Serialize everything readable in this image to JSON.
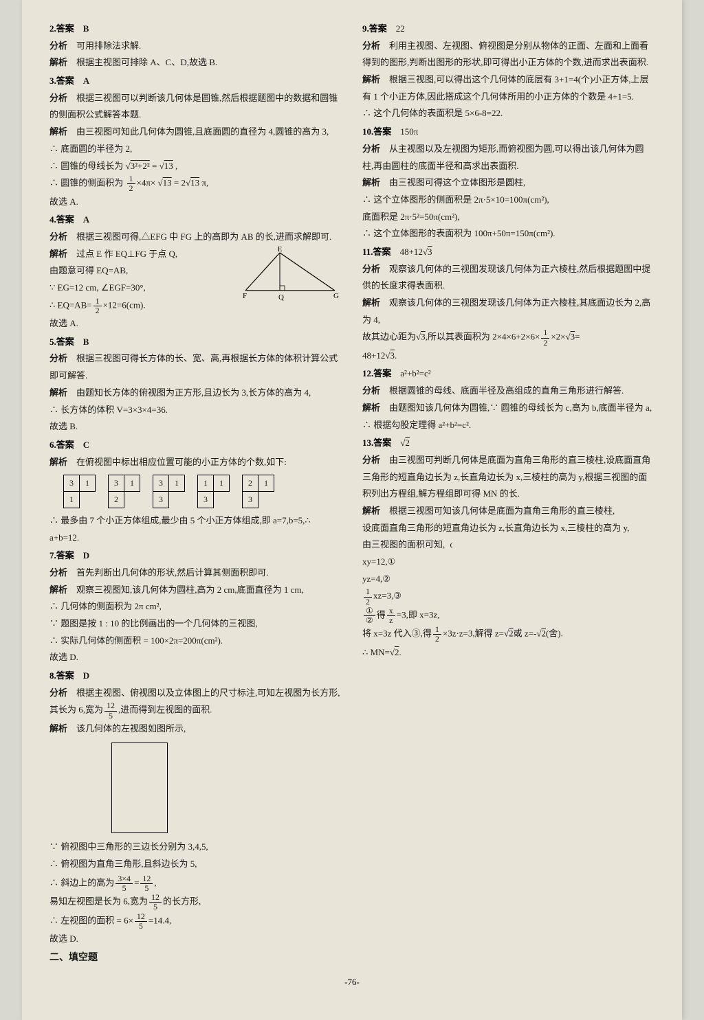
{
  "page_number": "-76-",
  "section2_title": "二、填空题",
  "q2": {
    "num": "2.答案",
    "ans": "B",
    "fx_label": "分析",
    "fx": "可用排除法求解.",
    "jx_label": "解析",
    "jx": "根据主视图可排除 A、C、D,故选 B."
  },
  "q3": {
    "num": "3.答案",
    "ans": "A",
    "fx_label": "分析",
    "fx": "根据三视图可以判断该几何体是圆锥,然后根据题图中的数据和圆锥的侧面积公式解答本题.",
    "jx_label": "解析",
    "jx1": "由三视图可知此几何体为圆锥,且底面圆的直径为 4,圆锥的高为 3,",
    "l1": "∴ 底面圆的半径为 2,",
    "l2_a": "∴ 圆锥的母线长为 ",
    "l2_b": "3²+2²",
    "l2_c": " = ",
    "l2_d": "13",
    "l2_e": " ,",
    "l3_a": "∴ 圆锥的侧面积为 ",
    "l3_n": "1",
    "l3_d": "2",
    "l3_b": "×4π× ",
    "l3_c": "13",
    "l3_dd": " = 2",
    "l3_e": "13",
    "l3_f": " π,",
    "l4": "故选 A."
  },
  "q4": {
    "num": "4.答案",
    "ans": "A",
    "fx_label": "分析",
    "fx": "根据三视图可得,△EFG 中 FG 上的高即为 AB 的长,进而求解即可.",
    "jx_label": "解析",
    "jx1": "过点 E 作 EQ⊥FG 于点 Q,",
    "l1": "由题意可得 EQ=AB,",
    "l2": "∵ EG=12 cm, ∠EGF=30°,",
    "l3_a": "∴ EQ=AB=",
    "l3_n": "1",
    "l3_d": "2",
    "l3_b": "×12=6(cm).",
    "l4": "故选 A.",
    "fig_E": "E",
    "fig_F": "F",
    "fig_Q": "Q",
    "fig_G": "G"
  },
  "q5": {
    "num": "5.答案",
    "ans": "B",
    "fx_label": "分析",
    "fx": "根据三视图可得长方体的长、宽、高,再根据长方体的体积计算公式即可解答.",
    "jx_label": "解析",
    "jx": "由题知长方体的俯视图为正方形,且边长为 3,长方体的高为 4,",
    "l1": "∴ 长方体的体积 V=3×3×4=36.",
    "l2": "故选 B."
  },
  "q6": {
    "num": "6.答案",
    "ans": "C",
    "jx_label": "解析",
    "jx": "在俯视图中标出相应位置可能的小正方体的个数,如下:",
    "l1": "∴ 最多由 7 个小正方体组成,最少由 5 个小正方体组成,即 a=7,b=5,∴ a+b=12.",
    "tables": [
      [
        [
          "3",
          "1"
        ],
        [
          "1",
          ""
        ]
      ],
      [
        [
          "3",
          "1"
        ],
        [
          "2",
          ""
        ]
      ],
      [
        [
          "3",
          "1"
        ],
        [
          "3",
          ""
        ]
      ],
      [
        [
          "1",
          "1"
        ],
        [
          "3",
          ""
        ]
      ],
      [
        [
          "2",
          "1"
        ],
        [
          "3",
          ""
        ]
      ]
    ]
  },
  "q7": {
    "num": "7.答案",
    "ans": "D",
    "fx_label": "分析",
    "fx": "首先判断出几何体的形状,然后计算其侧面积即可.",
    "jx_label": "解析",
    "jx": "观察三视图知,该几何体为圆柱,高为 2 cm,底面直径为 1 cm,",
    "l1": "∴ 几何体的侧面积为 2π cm²,",
    "l2": "∵ 题图是按 1 : 10 的比例画出的一个几何体的三视图,",
    "l3": "∴ 实际几何体的侧面积 = 100×2π=200π(cm²).",
    "l4": "故选 D."
  },
  "q8": {
    "num": "8.答案",
    "ans": "D",
    "fx_label": "分析",
    "fx_a": "根据主视图、俯视图以及立体图上的尺寸标注,可知左视图为长方形,其长为 6,宽为",
    "fx_n": "12",
    "fx_d": "5",
    "fx_b": ",进而得到左视图的面积.",
    "jx_label": "解析",
    "jx": "该几何体的左视图如图所示,",
    "l1": "∵ 俯视图中三角形的三边长分别为 3,4,5,",
    "l2": "∴ 俯视图为直角三角形,且斜边长为 5,",
    "r1_a": "∴ 斜边上的高为",
    "r1_n1": "3×4",
    "r1_d1": "5",
    "r1_eq": "=",
    "r1_n2": "12",
    "r1_d2": "5",
    "r1_b": ",",
    "r2_a": "易知左视图是长为 6,宽为",
    "r2_n": "12",
    "r2_d": "5",
    "r2_b": "的长方形,",
    "r3_a": "∴ 左视图的面积 = 6×",
    "r3_n": "12",
    "r3_d": "5",
    "r3_b": "=14.4,",
    "r4": "故选 D."
  },
  "q9": {
    "num": "9.答案",
    "ans": "22",
    "fx_label": "分析",
    "fx": "利用主视图、左视图、俯视图是分别从物体的正面、左面和上面看得到的图形,判断出图形的形状,即可得出小正方体的个数,进而求出表面积.",
    "jx_label": "解析",
    "jx": "根据三视图,可以得出这个几何体的底层有 3+1=4(个)小正方体,上层有 1 个小正方体,因此搭成这个几何体所用的小正方体的个数是 4+1=5.",
    "l1": "∴ 这个几何体的表面积是 5×6-8=22."
  },
  "q10": {
    "num": "10.答案",
    "ans": "150π",
    "fx_label": "分析",
    "fx": "从主视图以及左视图为矩形,而俯视图为圆,可以得出该几何体为圆柱,再由圆柱的底面半径和高求出表面积.",
    "jx_label": "解析",
    "jx": "由三视图可得这个立体图形是圆柱,",
    "l1": "∴ 这个立体图形的侧面积是 2π·5×10=100π(cm²),",
    "l2": "底面积是 2π·5²=50π(cm²),",
    "l3": "∴ 这个立体图形的表面积为 100π+50π=150π(cm²)."
  },
  "q11": {
    "num": "11.答案",
    "ans_a": "48+12",
    "ans_b": "3",
    "fx_label": "分析",
    "fx": "观察该几何体的三视图发现该几何体为正六棱柱,然后根据题图中提供的长度求得表面积.",
    "jx_label": "解析",
    "jx": "观察该几何体的三视图发现该几何体为正六棱柱,其底面边长为 2,高为 4,",
    "l1_a": "故其边心距为",
    "l1_b": "3",
    "l1_c": ",所以其表面积为 2×4×6+2×6×",
    "l1_n": "1",
    "l1_d": "2",
    "l1_e": "×2×",
    "l1_f": "3",
    "l1_g": "=",
    "l2_a": "48+12",
    "l2_b": "3",
    "l2_c": "."
  },
  "q12": {
    "num": "12.答案",
    "ans": "a²+b²=c²",
    "fx_label": "分析",
    "fx": "根据圆锥的母线、底面半径及高组成的直角三角形进行解答.",
    "jx_label": "解析",
    "jx": "由题图知该几何体为圆锥,∵ 圆锥的母线长为 c,高为 b,底面半径为 a,",
    "l1": "∴ 根据勾股定理得 a²+b²=c²."
  },
  "q13": {
    "num": "13.答案",
    "ans": "2",
    "fx_label": "分析",
    "fx": "由三视图可判断几何体是底面为直角三角形的直三棱柱,设底面直角三角形的短直角边长为 z,长直角边长为 x,三棱柱的高为 y,根据三视图的面积列出方程组,解方程组即可得 MN 的长.",
    "jx_label": "解析",
    "jx": "根据三视图可知该几何体是底面为直角三角形的直三棱柱,",
    "l1": "设底面直角三角形的短直角边长为 z,长直角边长为 x,三棱柱的高为 y,",
    "l2": "由三视图的面积可知,",
    "sys1": "xy=12,①",
    "sys2": "yz=4,②",
    "sys3_n": "1",
    "sys3_d": "2",
    "sys3_a": "xz=3,③",
    "l3_n1": "①",
    "l3_d1": "②",
    "l3_a": "得",
    "l3_n2": "x",
    "l3_d2": "z",
    "l3_b": "=3,即 x=3z,",
    "l4_a": "将 x=3z 代入③,得",
    "l4_n": "1",
    "l4_d": "2",
    "l4_b": "×3z·z=3,解得 z=",
    "l4_c": "2",
    "l4_cc": "或 z=-",
    "l4_e": "(舍).",
    "l5_a": "∴ MN=",
    "l5_b": "2",
    "l5_c": "."
  }
}
